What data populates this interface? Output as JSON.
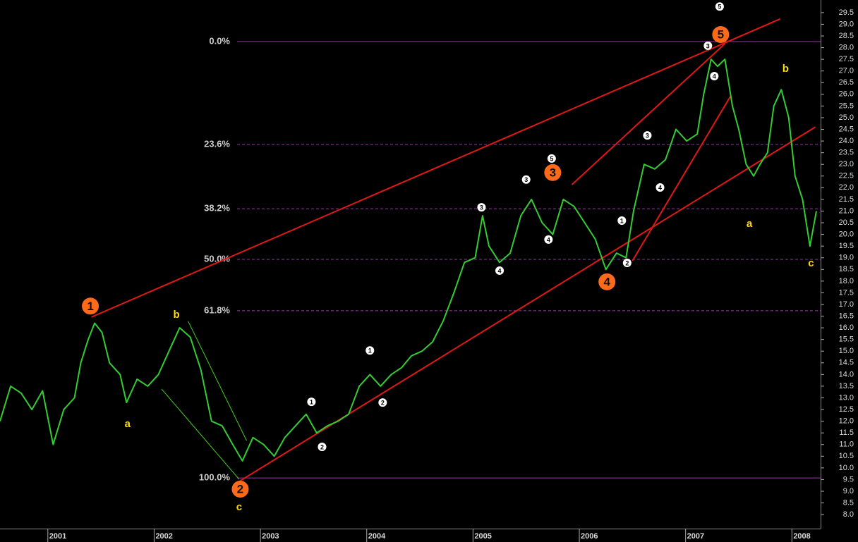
{
  "chart_data": {
    "type": "line",
    "x": [
      2000.55,
      2000.65,
      2000.75,
      2000.85,
      2000.95,
      2001.05,
      2001.15,
      2001.25,
      2001.31,
      2001.38,
      2001.44,
      2001.51,
      2001.58,
      2001.68,
      2001.74,
      2001.84,
      2001.94,
      2002.04,
      2002.14,
      2002.24,
      2002.34,
      2002.44,
      2002.54,
      2002.64,
      2002.74,
      2002.83,
      2002.93,
      2003.03,
      2003.13,
      2003.23,
      2003.33,
      2003.43,
      2003.53,
      2003.63,
      2003.73,
      2003.83,
      2003.93,
      2004.03,
      2004.13,
      2004.23,
      2004.33,
      2004.42,
      2004.52,
      2004.62,
      2004.72,
      2004.82,
      2004.92,
      2005.02,
      2005.09,
      2005.15,
      2005.25,
      2005.35,
      2005.45,
      2005.55,
      2005.65,
      2005.75,
      2005.85,
      2005.95,
      2006.05,
      2006.15,
      2006.25,
      2006.35,
      2006.44,
      2006.51,
      2006.61,
      2006.71,
      2006.81,
      2006.91,
      2007.01,
      2007.11,
      2007.17,
      2007.24,
      2007.3,
      2007.37,
      2007.44,
      2007.5,
      2007.57,
      2007.64,
      2007.7,
      2007.77,
      2007.83,
      2007.9,
      2007.97,
      2008.03,
      2008.1,
      2008.17,
      2008.23
    ],
    "series": [
      {
        "color": "#33cc33",
        "values": [
          12.0,
          13.5,
          13.2,
          12.5,
          13.3,
          11.0,
          12.5,
          13.0,
          14.5,
          15.5,
          16.2,
          15.8,
          14.5,
          14.0,
          12.8,
          13.8,
          13.5,
          14.0,
          15.0,
          16.0,
          15.6,
          14.2,
          12.0,
          11.8,
          11.0,
          10.3,
          11.3,
          11.0,
          10.5,
          11.3,
          11.8,
          12.3,
          11.5,
          11.8,
          12.0,
          12.3,
          13.5,
          14.0,
          13.5,
          14.0,
          14.3,
          14.8,
          15.0,
          15.4,
          16.3,
          17.5,
          18.8,
          19.0,
          20.8,
          19.5,
          18.8,
          19.2,
          20.8,
          21.5,
          20.5,
          20.0,
          21.5,
          21.2,
          20.5,
          19.8,
          18.5,
          19.2,
          19.0,
          21.0,
          23.0,
          22.8,
          23.2,
          24.5,
          24.0,
          24.3,
          26.0,
          27.5,
          27.2,
          27.5,
          25.5,
          24.5,
          23.0,
          22.5,
          23.0,
          23.5,
          25.5,
          26.2,
          25.0,
          22.5,
          21.5,
          19.5,
          21.0
        ]
      }
    ],
    "xlim": [
      2000.55,
      2008.27
    ],
    "xticks": [
      2001,
      2002,
      2003,
      2004,
      2005,
      2006,
      2007,
      2008
    ],
    "ylim": [
      7.4,
      30.04
    ],
    "yticks": [
      {
        "value": 8,
        "label": "8.0"
      },
      8.5,
      {
        "value": 9,
        "label": "9.0"
      },
      9.5,
      {
        "value": 10,
        "label": "10.0"
      },
      10.5,
      {
        "value": 11,
        "label": "11.0"
      },
      11.5,
      {
        "value": 12,
        "label": "12.0"
      },
      12.5,
      {
        "value": 13,
        "label": "13.0"
      },
      13.5,
      {
        "value": 14,
        "label": "14.0"
      },
      14.5,
      {
        "value": 15,
        "label": "15.0"
      },
      15.5,
      {
        "value": 16,
        "label": "16.0"
      },
      16.5,
      {
        "value": 17,
        "label": "17.0"
      },
      17.5,
      {
        "value": 18,
        "label": "18.0"
      },
      18.5,
      {
        "value": 19,
        "label": "19.0"
      },
      19.5,
      {
        "value": 20,
        "label": "20.0"
      },
      20.5,
      {
        "value": 21,
        "label": "21.0"
      },
      21.5,
      {
        "value": 22,
        "label": "22.0"
      },
      22.5,
      {
        "value": 23,
        "label": "23.0"
      },
      23.5,
      {
        "value": 24,
        "label": "24.0"
      },
      24.5,
      {
        "value": 25,
        "label": "25.0"
      },
      25.5,
      {
        "value": 26,
        "label": "26.0"
      },
      26.5,
      {
        "value": 27,
        "label": "27.0"
      },
      27.5,
      {
        "value": 28,
        "label": "28.0"
      },
      28.5,
      {
        "value": 29,
        "label": "29.0"
      },
      29.5
    ],
    "levels": [
      {
        "value": 28.26,
        "label": "0.0%",
        "dashed": false
      },
      {
        "value": 23.85,
        "label": "23.6%",
        "dashed": true
      },
      {
        "value": 21.1,
        "label": "38.2%",
        "dashed": true
      },
      {
        "value": 18.93,
        "label": "50.0%",
        "dashed": true
      },
      {
        "value": 16.73,
        "label": "61.8%",
        "dashed": true
      },
      {
        "value": 9.57,
        "label": "100.0%",
        "dashed": false
      }
    ],
    "level_color": "#9933aa",
    "trend_lines": [
      {
        "color": "#e01818",
        "x": [
          2001.41,
          2007.89
        ],
        "y": [
          16.46,
          29.23
        ]
      },
      {
        "color": "#e01818",
        "x": [
          2002.8,
          2008.22
        ],
        "y": [
          9.42,
          24.6
        ]
      },
      {
        "color": "#e01818",
        "x": [
          2005.93,
          2007.37
        ],
        "y": [
          22.13,
          28.17
        ]
      },
      {
        "color": "#e01818",
        "x": [
          2006.5,
          2007.42
        ],
        "y": [
          18.87,
          25.9
        ]
      },
      {
        "color": "#44cc22",
        "x": [
          2002.32,
          2002.87
        ],
        "y": [
          16.28,
          11.17
        ]
      },
      {
        "color": "#44cc22",
        "x": [
          2002.07,
          2002.8
        ],
        "y": [
          13.38,
          9.51
        ]
      }
    ],
    "waves": [
      {
        "label": "1",
        "x": 2001.4,
        "y": 16.93,
        "style": "major"
      },
      {
        "label": "2",
        "x": 2002.81,
        "y": 9.09,
        "style": "major"
      },
      {
        "label": "3",
        "x": 2005.75,
        "y": 22.65,
        "style": "major"
      },
      {
        "label": "4",
        "x": 2006.26,
        "y": 17.97,
        "style": "major"
      },
      {
        "label": "5",
        "x": 2007.33,
        "y": 28.56,
        "style": "major"
      },
      {
        "label": "1",
        "x": 2003.48,
        "y": 12.83,
        "style": "minor"
      },
      {
        "label": "2",
        "x": 2003.58,
        "y": 10.9,
        "style": "minor"
      },
      {
        "label": "1",
        "x": 2004.03,
        "y": 15.03,
        "style": "minor"
      },
      {
        "label": "2",
        "x": 2004.15,
        "y": 12.8,
        "style": "minor"
      },
      {
        "label": "3",
        "x": 2005.08,
        "y": 21.16,
        "style": "minor"
      },
      {
        "label": "4",
        "x": 2005.25,
        "y": 18.45,
        "style": "minor"
      },
      {
        "label": "3",
        "x": 2005.5,
        "y": 22.35,
        "style": "minor"
      },
      {
        "label": "5",
        "x": 2005.74,
        "y": 23.25,
        "style": "minor"
      },
      {
        "label": "4",
        "x": 2005.71,
        "y": 19.78,
        "style": "minor"
      },
      {
        "label": "1",
        "x": 2006.4,
        "y": 20.59,
        "style": "minor"
      },
      {
        "label": "2",
        "x": 2006.45,
        "y": 18.78,
        "style": "minor"
      },
      {
        "label": "3",
        "x": 2006.64,
        "y": 24.24,
        "style": "minor"
      },
      {
        "label": "4",
        "x": 2006.76,
        "y": 22.01,
        "style": "minor"
      },
      {
        "label": "3",
        "x": 2007.21,
        "y": 28.08,
        "style": "minor"
      },
      {
        "label": "4",
        "x": 2007.27,
        "y": 26.78,
        "style": "minor"
      },
      {
        "label": "5",
        "x": 2007.32,
        "y": 29.76,
        "style": "minor"
      },
      {
        "label": "a",
        "x": 2001.75,
        "y": 11.87,
        "style": "letter"
      },
      {
        "label": "b",
        "x": 2002.21,
        "y": 16.55,
        "style": "letter"
      },
      {
        "label": "c",
        "x": 2002.8,
        "y": 8.3,
        "style": "letter"
      },
      {
        "label": "a",
        "x": 2007.6,
        "y": 20.44,
        "style": "letter"
      },
      {
        "label": "b",
        "x": 2007.94,
        "y": 27.08,
        "style": "letter"
      },
      {
        "label": "c",
        "x": 2008.18,
        "y": 18.75,
        "style": "letter"
      }
    ]
  }
}
